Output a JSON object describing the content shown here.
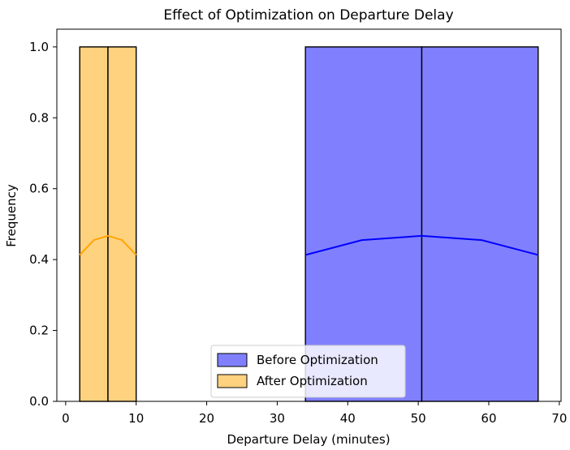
{
  "chart_data": {
    "type": "histogram",
    "title": "Effect of Optimization on Departure Delay",
    "xlabel": "Departure Delay (minutes)",
    "ylabel": "Frequency",
    "xlim": [
      -1.25,
      70.25
    ],
    "ylim": [
      0,
      1.05
    ],
    "xticks": [
      0,
      10,
      20,
      30,
      40,
      50,
      60,
      70
    ],
    "yticks": [
      0.0,
      0.2,
      0.4,
      0.6,
      0.8,
      1.0
    ],
    "xtick_labels": [
      "0",
      "10",
      "20",
      "30",
      "40",
      "50",
      "60",
      "70"
    ],
    "ytick_labels": [
      "0.0",
      "0.2",
      "0.4",
      "0.6",
      "0.8",
      "1.0"
    ],
    "grid": false,
    "legend_position": "lower-center",
    "series": [
      {
        "name": "Before Optimization",
        "color": "#0000ff",
        "fill": "#8080ff",
        "bins": [
          {
            "x0": 34,
            "x1": 50.5,
            "count": 1.0
          },
          {
            "x0": 50.5,
            "x1": 67,
            "count": 1.0
          }
        ],
        "kde": {
          "x": [
            34,
            42,
            50.5,
            59,
            67
          ],
          "y": [
            0.413,
            0.455,
            0.467,
            0.455,
            0.413
          ]
        }
      },
      {
        "name": "After Optimization",
        "color": "#ffa500",
        "fill": "#ffd280",
        "bins": [
          {
            "x0": 2,
            "x1": 6,
            "count": 1.0
          },
          {
            "x0": 6,
            "x1": 10,
            "count": 1.0
          }
        ],
        "kde": {
          "x": [
            2,
            4,
            6,
            8,
            10
          ],
          "y": [
            0.413,
            0.455,
            0.467,
            0.455,
            0.413
          ]
        }
      }
    ]
  }
}
